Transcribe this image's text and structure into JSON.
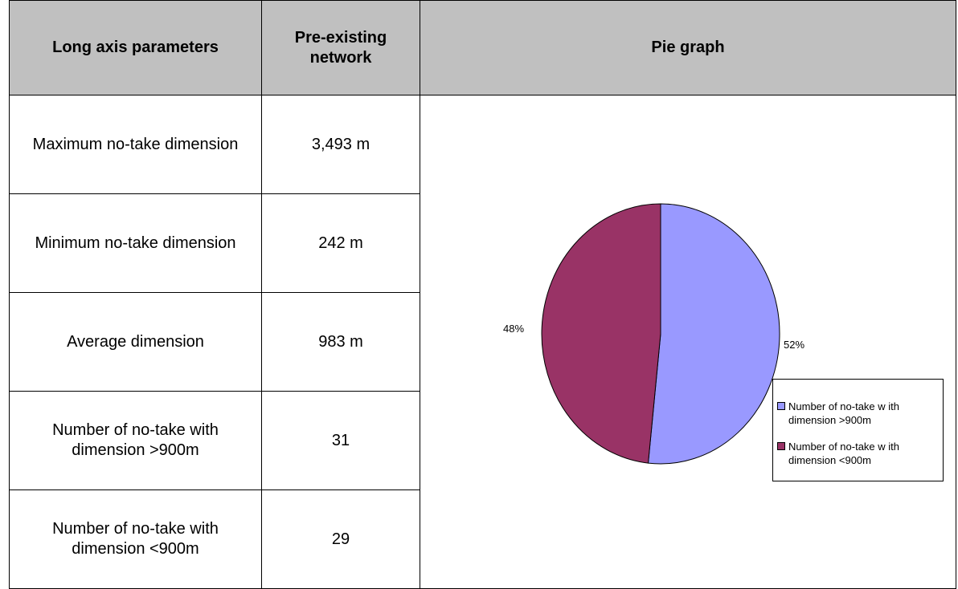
{
  "table": {
    "headers": [
      "Long axis parameters",
      "Pre-existing network",
      "Pie graph"
    ],
    "rows": [
      {
        "parameter": "Maximum no-take dimension",
        "value": "3,493 m"
      },
      {
        "parameter": "Minimum no-take dimension",
        "value": "242 m"
      },
      {
        "parameter": "Average dimension",
        "value": "983 m"
      },
      {
        "parameter": "Number of no-take with dimension >900m",
        "value": "31"
      },
      {
        "parameter": "Number of no-take with dimension <900m",
        "value": "29"
      }
    ]
  },
  "chart_data": {
    "type": "pie",
    "categories": [
      "Number of no-take w ith dimension >900m",
      "Number of no-take w ith dimension <900m"
    ],
    "values": [
      31,
      29
    ],
    "labels": [
      "52%",
      "48%"
    ],
    "colors": [
      "#9999ff",
      "#993366"
    ],
    "legend": "right"
  }
}
